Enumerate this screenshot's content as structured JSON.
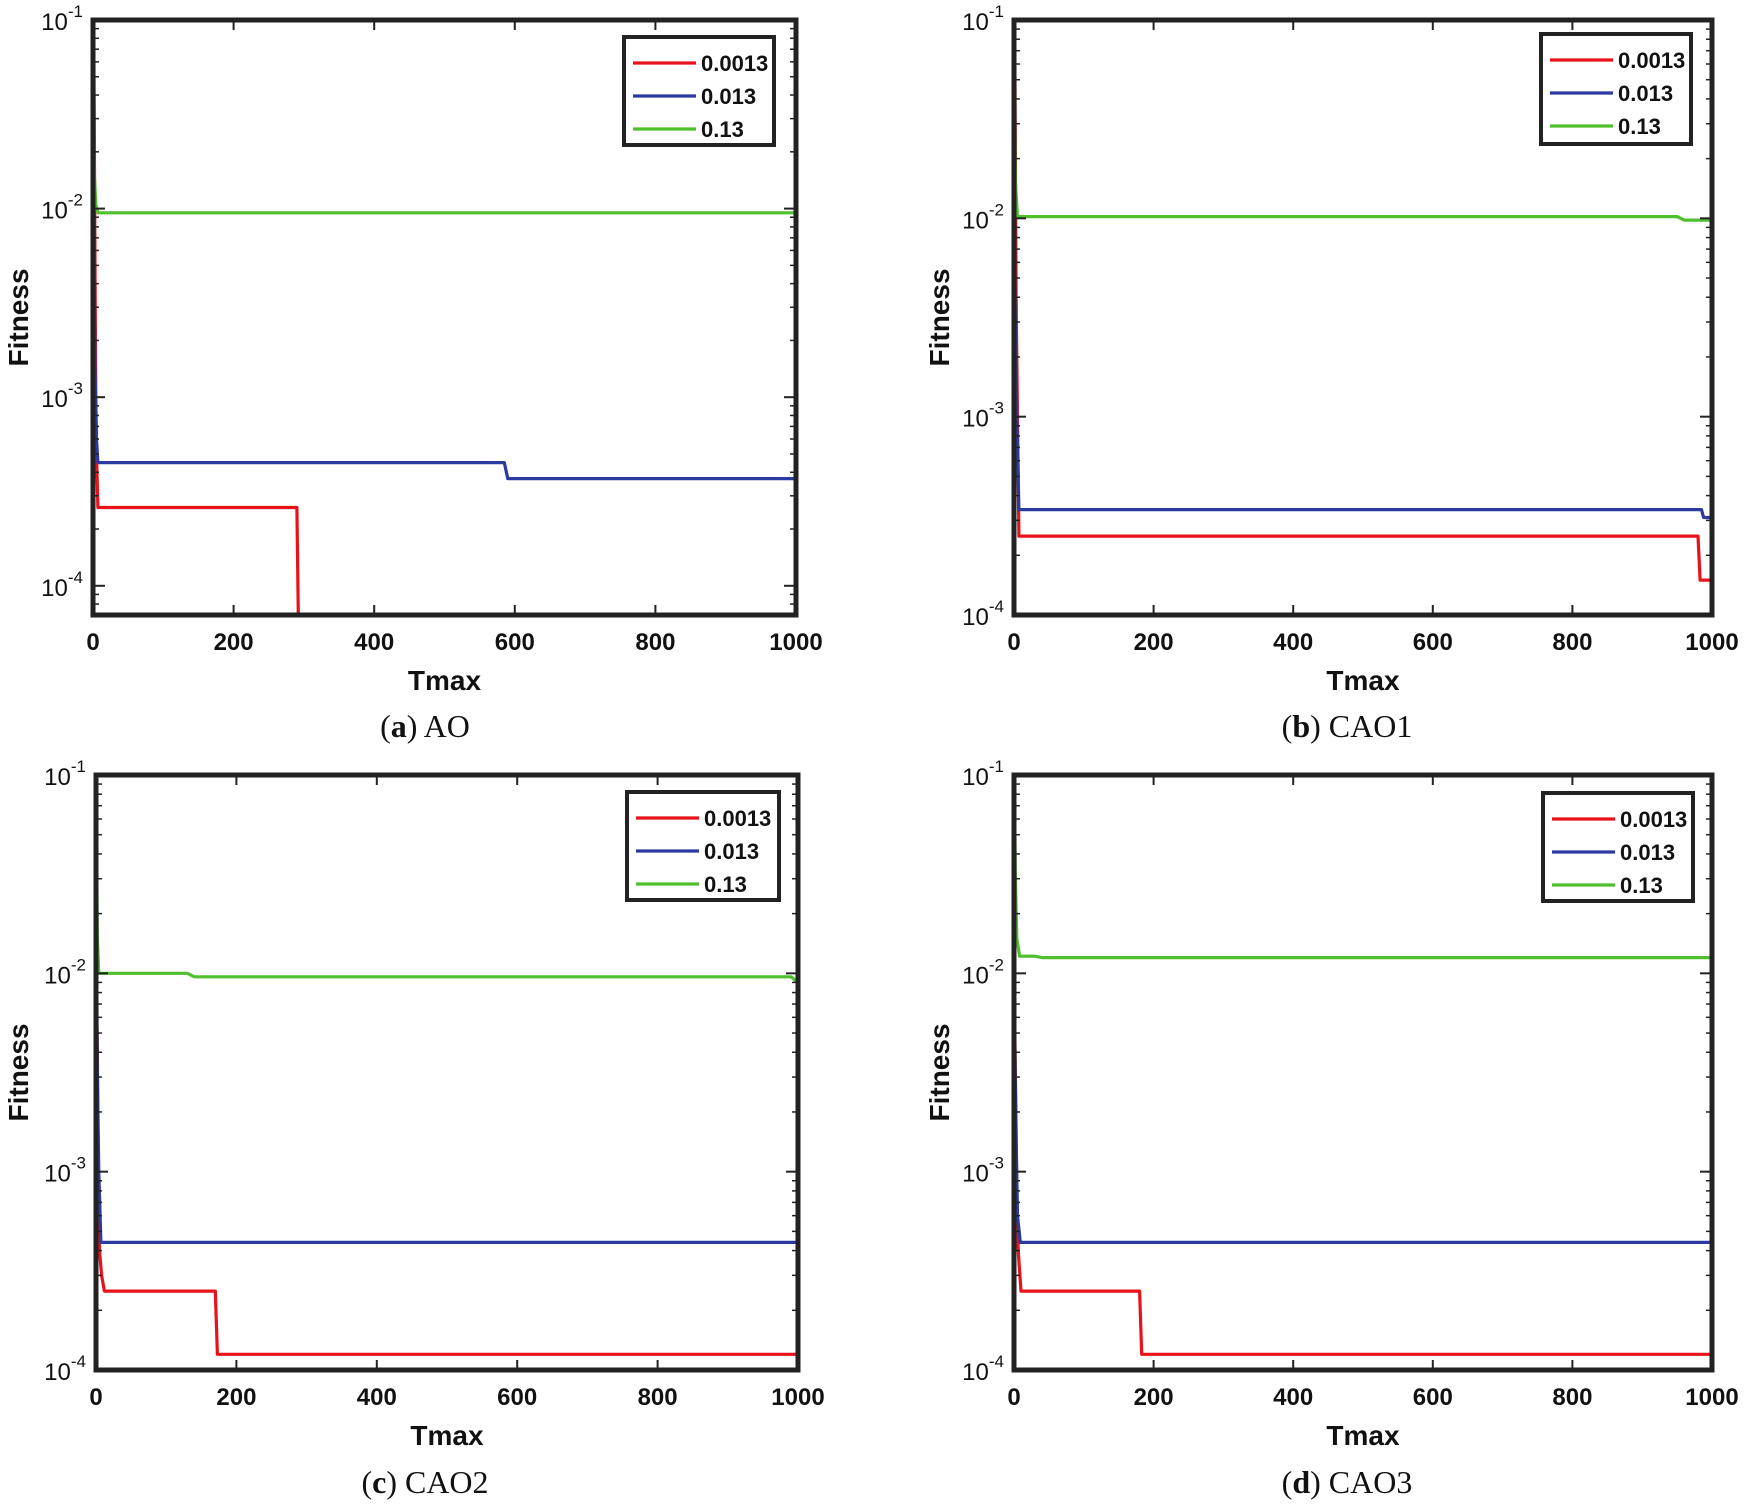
{
  "chart_data": [
    {
      "type": "line",
      "panel_letter": "a",
      "panel_name": "AO",
      "xlabel": "Tmax",
      "ylabel": "Fitness",
      "xlim": [
        0,
        1000
      ],
      "ylim": [
        7e-05,
        0.1
      ],
      "yscale": "log",
      "x_ticks": [
        0,
        200,
        400,
        600,
        800,
        1000
      ],
      "y_ticks": [
        {
          "base": "10",
          "exp": "-1",
          "value": 0.1
        },
        {
          "base": "10",
          "exp": "-2",
          "value": 0.01
        },
        {
          "base": "10",
          "exp": "-3",
          "value": 0.001
        },
        {
          "base": "10",
          "exp": "-4",
          "value": 0.0001
        }
      ],
      "legend_position": "top-right",
      "series": [
        {
          "name": "0.0013",
          "color": "#e8121a",
          "points": [
            [
              0,
              0.1
            ],
            [
              1,
              0.1
            ],
            [
              2,
              0.02
            ],
            [
              3,
              0.004
            ],
            [
              4,
              0.001
            ],
            [
              5,
              0.0005
            ],
            [
              7,
              0.00026
            ],
            [
              290,
              0.00026
            ],
            [
              292,
              7e-05
            ],
            [
              1000,
              7e-05
            ]
          ]
        },
        {
          "name": "0.013",
          "color": "#2b3aa0",
          "points": [
            [
              0,
              0.015
            ],
            [
              1,
              0.006
            ],
            [
              2,
              0.003
            ],
            [
              3,
              0.0013
            ],
            [
              5,
              0.0006
            ],
            [
              7,
              0.00045
            ],
            [
              585,
              0.00045
            ],
            [
              590,
              0.00037
            ],
            [
              1000,
              0.00037
            ]
          ]
        },
        {
          "name": "0.13",
          "color": "#4fbf2e",
          "points": [
            [
              0,
              0.08
            ],
            [
              1,
              0.05
            ],
            [
              2,
              0.015
            ],
            [
              4,
              0.0105
            ],
            [
              7,
              0.0095
            ],
            [
              1000,
              0.0095
            ]
          ]
        }
      ]
    },
    {
      "type": "line",
      "panel_letter": "b",
      "panel_name": "CAO1",
      "xlabel": "Tmax",
      "ylabel": "Fitness",
      "xlim": [
        0,
        1000
      ],
      "ylim": [
        0.0001,
        0.1
      ],
      "yscale": "log",
      "x_ticks": [
        0,
        200,
        400,
        600,
        800,
        1000
      ],
      "y_ticks": [
        {
          "base": "10",
          "exp": "-1",
          "value": 0.1
        },
        {
          "base": "10",
          "exp": "-2",
          "value": 0.01
        },
        {
          "base": "10",
          "exp": "-3",
          "value": 0.001
        },
        {
          "base": "10",
          "exp": "-4",
          "value": 0.0001
        }
      ],
      "legend_position": "top-right",
      "series": [
        {
          "name": "0.0013",
          "color": "#e8121a",
          "points": [
            [
              0,
              0.04
            ],
            [
              1,
              0.09
            ],
            [
              2,
              0.02
            ],
            [
              3,
              0.004
            ],
            [
              5,
              0.001
            ],
            [
              7,
              0.00025
            ],
            [
              980,
              0.00025
            ],
            [
              983,
              0.00015
            ],
            [
              1000,
              0.00015
            ]
          ]
        },
        {
          "name": "0.013",
          "color": "#2b3aa0",
          "points": [
            [
              0,
              0.02
            ],
            [
              1,
              0.006
            ],
            [
              2,
              0.003
            ],
            [
              4,
              0.001
            ],
            [
              7,
              0.00034
            ],
            [
              985,
              0.00034
            ],
            [
              988,
              0.00031
            ],
            [
              1000,
              0.00031
            ]
          ]
        },
        {
          "name": "0.13",
          "color": "#4fbf2e",
          "points": [
            [
              0,
              0.02
            ],
            [
              1,
              0.04
            ],
            [
              2,
              0.015
            ],
            [
              5,
              0.0102
            ],
            [
              950,
              0.0102
            ],
            [
              960,
              0.0098
            ],
            [
              1000,
              0.0098
            ]
          ]
        }
      ]
    },
    {
      "type": "line",
      "panel_letter": "c",
      "panel_name": "CAO2",
      "xlabel": "Tmax",
      "ylabel": "Fitness",
      "xlim": [
        0,
        1000
      ],
      "ylim": [
        0.0001,
        0.1
      ],
      "yscale": "log",
      "x_ticks": [
        0,
        200,
        400,
        600,
        800,
        1000
      ],
      "y_ticks": [
        {
          "base": "10",
          "exp": "-1",
          "value": 0.1
        },
        {
          "base": "10",
          "exp": "-2",
          "value": 0.01
        },
        {
          "base": "10",
          "exp": "-3",
          "value": 0.001
        },
        {
          "base": "10",
          "exp": "-4",
          "value": 0.0001
        }
      ],
      "legend_position": "top-right",
      "series": [
        {
          "name": "0.0013",
          "color": "#e8121a",
          "points": [
            [
              0,
              0.01
            ],
            [
              2,
              0.004
            ],
            [
              3,
              0.0012
            ],
            [
              5,
              0.0004
            ],
            [
              8,
              0.0003
            ],
            [
              12,
              0.00025
            ],
            [
              170,
              0.00025
            ],
            [
              173,
              0.00012
            ],
            [
              1000,
              0.00012
            ]
          ]
        },
        {
          "name": "0.013",
          "color": "#2b3aa0",
          "points": [
            [
              0,
              0.035
            ],
            [
              1,
              0.01
            ],
            [
              2,
              0.003
            ],
            [
              4,
              0.001
            ],
            [
              7,
              0.00044
            ],
            [
              1000,
              0.00044
            ]
          ]
        },
        {
          "name": "0.13",
          "color": "#4fbf2e",
          "points": [
            [
              0,
              0.025
            ],
            [
              1,
              0.035
            ],
            [
              2,
              0.015
            ],
            [
              4,
              0.01
            ],
            [
              130,
              0.01
            ],
            [
              140,
              0.0096
            ],
            [
              990,
              0.0096
            ],
            [
              1000,
              0.009
            ]
          ]
        }
      ]
    },
    {
      "type": "line",
      "panel_letter": "d",
      "panel_name": "CAO3",
      "xlabel": "Tmax",
      "ylabel": "Fitness",
      "xlim": [
        0,
        1000
      ],
      "ylim": [
        0.0001,
        0.1
      ],
      "yscale": "log",
      "x_ticks": [
        0,
        200,
        400,
        600,
        800,
        1000
      ],
      "y_ticks": [
        {
          "base": "10",
          "exp": "-1",
          "value": 0.1
        },
        {
          "base": "10",
          "exp": "-2",
          "value": 0.01
        },
        {
          "base": "10",
          "exp": "-3",
          "value": 0.001
        },
        {
          "base": "10",
          "exp": "-4",
          "value": 0.0001
        }
      ],
      "legend_position": "top-right",
      "series": [
        {
          "name": "0.0013",
          "color": "#e8121a",
          "points": [
            [
              0,
              0.01
            ],
            [
              2,
              0.003
            ],
            [
              4,
              0.0008
            ],
            [
              6,
              0.0004
            ],
            [
              10,
              0.00025
            ],
            [
              180,
              0.00025
            ],
            [
              183,
              0.00012
            ],
            [
              1000,
              0.00012
            ]
          ]
        },
        {
          "name": "0.013",
          "color": "#2b3aa0",
          "points": [
            [
              0,
              0.012
            ],
            [
              1,
              0.005
            ],
            [
              3,
              0.0015
            ],
            [
              5,
              0.0006
            ],
            [
              9,
              0.00044
            ],
            [
              1000,
              0.00044
            ]
          ]
        },
        {
          "name": "0.13",
          "color": "#4fbf2e",
          "points": [
            [
              0,
              0.05
            ],
            [
              1,
              0.06
            ],
            [
              2,
              0.03
            ],
            [
              4,
              0.015
            ],
            [
              8,
              0.0122
            ],
            [
              30,
              0.0122
            ],
            [
              40,
              0.012
            ],
            [
              1000,
              0.012
            ]
          ]
        }
      ]
    }
  ]
}
